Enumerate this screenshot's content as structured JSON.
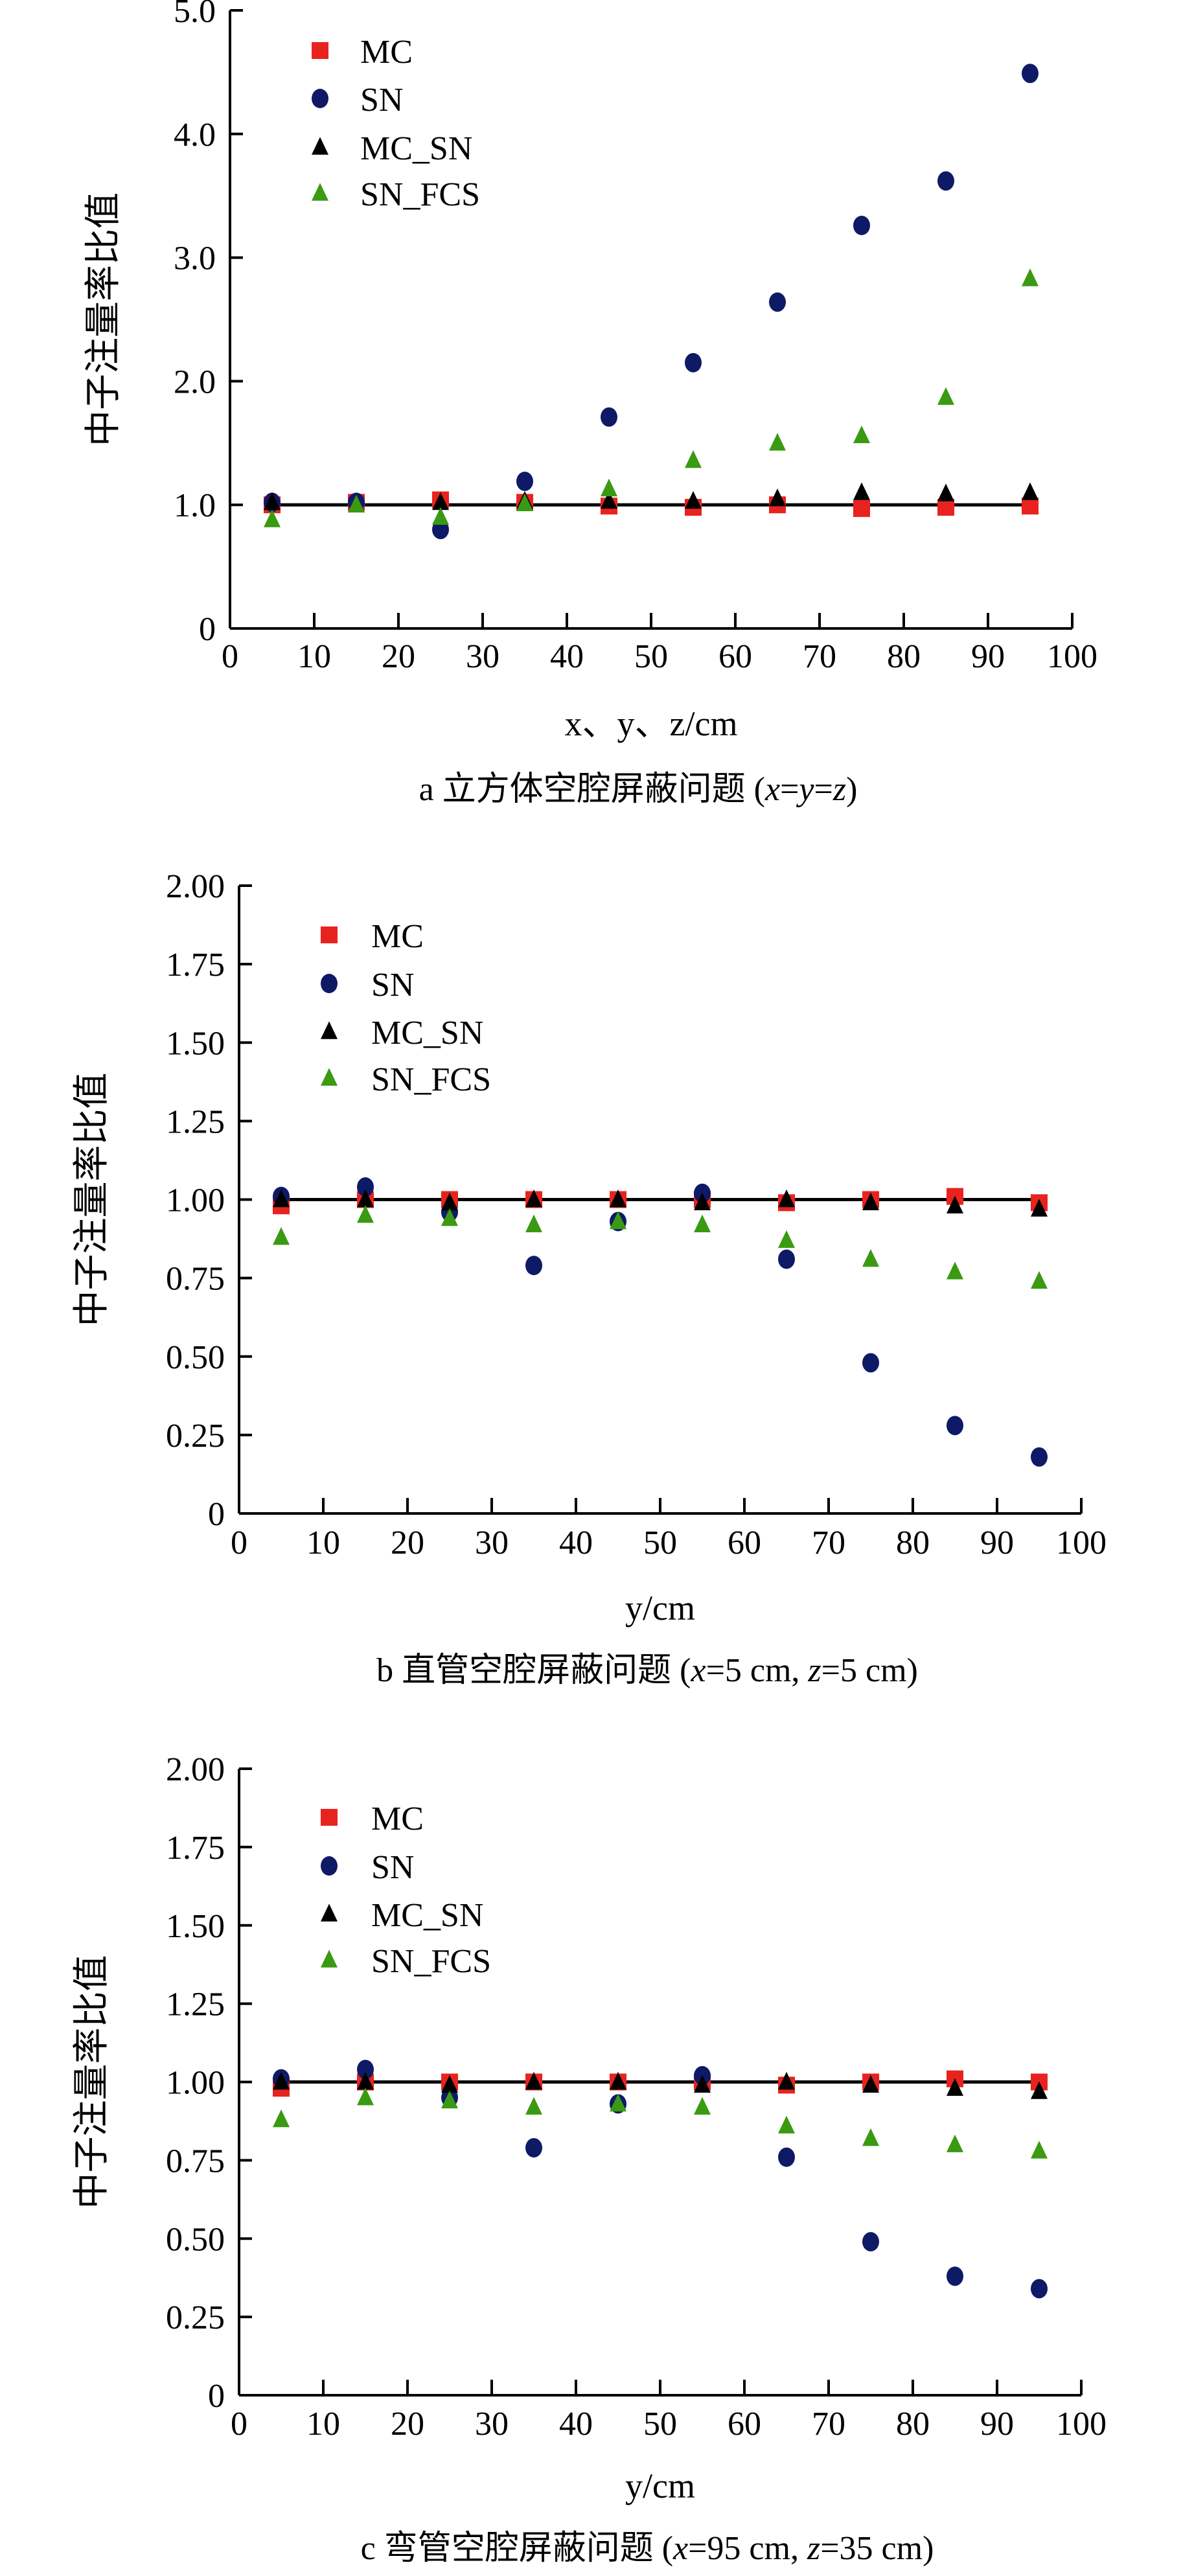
{
  "colors": {
    "MC": "#e8231f",
    "SN": "#0e1a66",
    "MC_SN": "#000000",
    "SN_FCS": "#3a9a12",
    "axis": "#000000"
  },
  "chart_data": [
    {
      "type": "scatter",
      "caption": "a  立方体空腔屏蔽问题 (x=y=z)",
      "xlabel": "x、y、z/cm",
      "ylabel": "中子注量率比值",
      "xlim": [
        0,
        100
      ],
      "ylim": [
        0,
        5
      ],
      "xticks": [
        0,
        10,
        20,
        30,
        40,
        50,
        60,
        70,
        80,
        90,
        100
      ],
      "yticks": [
        0,
        1,
        2,
        3,
        4,
        5
      ],
      "ytick_labels": [
        "0",
        "1.0",
        "2.0",
        "3.0",
        "4.0",
        "5.0"
      ],
      "legend_position": "top-left",
      "reference_line": {
        "y": 1.0,
        "x": [
          5,
          95
        ]
      },
      "x": [
        5,
        15,
        25,
        35,
        45,
        55,
        65,
        75,
        85,
        95
      ],
      "series": [
        {
          "name": "MC",
          "marker": "square",
          "values": [
            1.0,
            1.02,
            1.04,
            1.02,
            0.99,
            0.98,
            1.0,
            0.97,
            0.98,
            0.99
          ]
        },
        {
          "name": "SN",
          "marker": "circle",
          "values": [
            1.02,
            1.02,
            0.8,
            1.19,
            1.71,
            2.15,
            2.64,
            3.26,
            3.62,
            4.49
          ]
        },
        {
          "name": "MC_SN",
          "marker": "triangle",
          "values": [
            1.02,
            1.0,
            1.02,
            1.03,
            1.03,
            1.03,
            1.05,
            1.1,
            1.09,
            1.1
          ]
        },
        {
          "name": "SN_FCS",
          "marker": "triangle",
          "values": [
            0.88,
            1.0,
            0.9,
            1.01,
            1.13,
            1.36,
            1.5,
            1.56,
            1.87,
            2.83
          ]
        }
      ]
    },
    {
      "type": "scatter",
      "caption": "b  直管空腔屏蔽问题 (x=5 cm, z=5 cm)",
      "xlabel": "y/cm",
      "ylabel": "中子注量率比值",
      "xlim": [
        0,
        100
      ],
      "ylim": [
        0,
        2
      ],
      "xticks": [
        0,
        10,
        20,
        30,
        40,
        50,
        60,
        70,
        80,
        90,
        100
      ],
      "yticks": [
        0,
        0.25,
        0.5,
        0.75,
        1,
        1.25,
        1.5,
        1.75,
        2
      ],
      "ytick_labels": [
        "0",
        "0.25",
        "0.50",
        "0.75",
        "1.00",
        "1.25",
        "1.50",
        "1.75",
        "2.00"
      ],
      "legend_position": "top-left",
      "reference_line": {
        "y": 1.0,
        "x": [
          5,
          95
        ]
      },
      "x": [
        5,
        15,
        25,
        35,
        45,
        55,
        65,
        75,
        85,
        95
      ],
      "series": [
        {
          "name": "MC",
          "marker": "square",
          "values": [
            0.98,
            1.0,
            1.0,
            1.0,
            1.0,
            1.0,
            0.99,
            1.0,
            1.01,
            0.99
          ]
        },
        {
          "name": "SN",
          "marker": "circle",
          "values": [
            1.01,
            1.04,
            0.96,
            0.79,
            0.93,
            1.02,
            0.81,
            0.48,
            0.28,
            0.18
          ]
        },
        {
          "name": "MC_SN",
          "marker": "triangle",
          "values": [
            1.0,
            1.0,
            0.99,
            1.0,
            1.0,
            0.99,
            1.0,
            0.99,
            0.98,
            0.97
          ]
        },
        {
          "name": "SN_FCS",
          "marker": "triangle",
          "values": [
            0.88,
            0.95,
            0.94,
            0.92,
            0.93,
            0.92,
            0.87,
            0.81,
            0.77,
            0.74
          ]
        }
      ]
    },
    {
      "type": "scatter",
      "caption": "c  弯管空腔屏蔽问题 (x=95 cm, z=35 cm)",
      "xlabel": "y/cm",
      "ylabel": "中子注量率比值",
      "xlim": [
        0,
        100
      ],
      "ylim": [
        0,
        2
      ],
      "xticks": [
        0,
        10,
        20,
        30,
        40,
        50,
        60,
        70,
        80,
        90,
        100
      ],
      "yticks": [
        0,
        0.25,
        0.5,
        0.75,
        1,
        1.25,
        1.5,
        1.75,
        2
      ],
      "ytick_labels": [
        "0",
        "0.25",
        "0.50",
        "0.75",
        "1.00",
        "1.25",
        "1.50",
        "1.75",
        "2.00"
      ],
      "legend_position": "top-left",
      "reference_line": {
        "y": 1.0,
        "x": [
          5,
          95
        ]
      },
      "x": [
        5,
        15,
        25,
        35,
        45,
        55,
        65,
        75,
        85,
        95
      ],
      "series": [
        {
          "name": "MC",
          "marker": "square",
          "values": [
            0.98,
            1.0,
            1.0,
            1.0,
            1.0,
            1.0,
            0.99,
            1.0,
            1.01,
            1.0
          ]
        },
        {
          "name": "SN",
          "marker": "circle",
          "values": [
            1.01,
            1.04,
            0.95,
            0.79,
            0.93,
            1.02,
            0.76,
            0.49,
            0.38,
            0.34
          ]
        },
        {
          "name": "MC_SN",
          "marker": "triangle",
          "values": [
            1.0,
            1.0,
            0.99,
            1.0,
            1.0,
            0.99,
            1.0,
            0.99,
            0.98,
            0.97
          ]
        },
        {
          "name": "SN_FCS",
          "marker": "triangle",
          "values": [
            0.88,
            0.95,
            0.94,
            0.92,
            0.93,
            0.92,
            0.86,
            0.82,
            0.8,
            0.78
          ]
        }
      ]
    }
  ]
}
